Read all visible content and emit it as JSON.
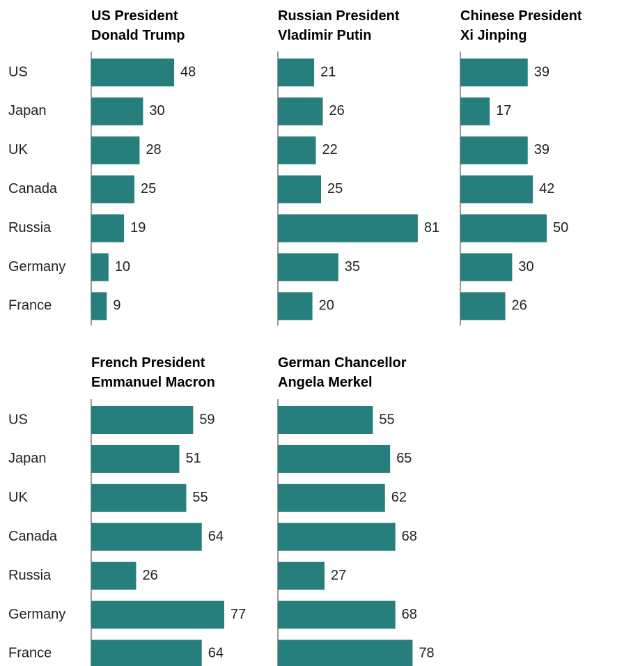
{
  "chart_data": {
    "type": "bar",
    "orientation": "horizontal",
    "bar_color": "#267F7C",
    "axis_color": "#777777",
    "categories": [
      "US",
      "Japan",
      "UK",
      "Canada",
      "Russia",
      "Germany",
      "France"
    ],
    "panels": [
      {
        "title": [
          "US President",
          "Donald Trump"
        ],
        "values": [
          48,
          30,
          28,
          25,
          19,
          10,
          9
        ]
      },
      {
        "title": [
          "Russian President",
          "Vladimir Putin"
        ],
        "values": [
          21,
          26,
          22,
          25,
          81,
          35,
          20
        ]
      },
      {
        "title": [
          "Chinese President",
          "Xi Jinping"
        ],
        "values": [
          39,
          17,
          39,
          42,
          50,
          30,
          26
        ]
      },
      {
        "title": [
          "French President",
          "Emmanuel Macron"
        ],
        "values": [
          59,
          51,
          55,
          64,
          26,
          77,
          64
        ]
      },
      {
        "title": [
          "German Chancellor",
          "Angela Merkel"
        ],
        "values": [
          55,
          65,
          62,
          68,
          27,
          68,
          78
        ]
      }
    ]
  }
}
